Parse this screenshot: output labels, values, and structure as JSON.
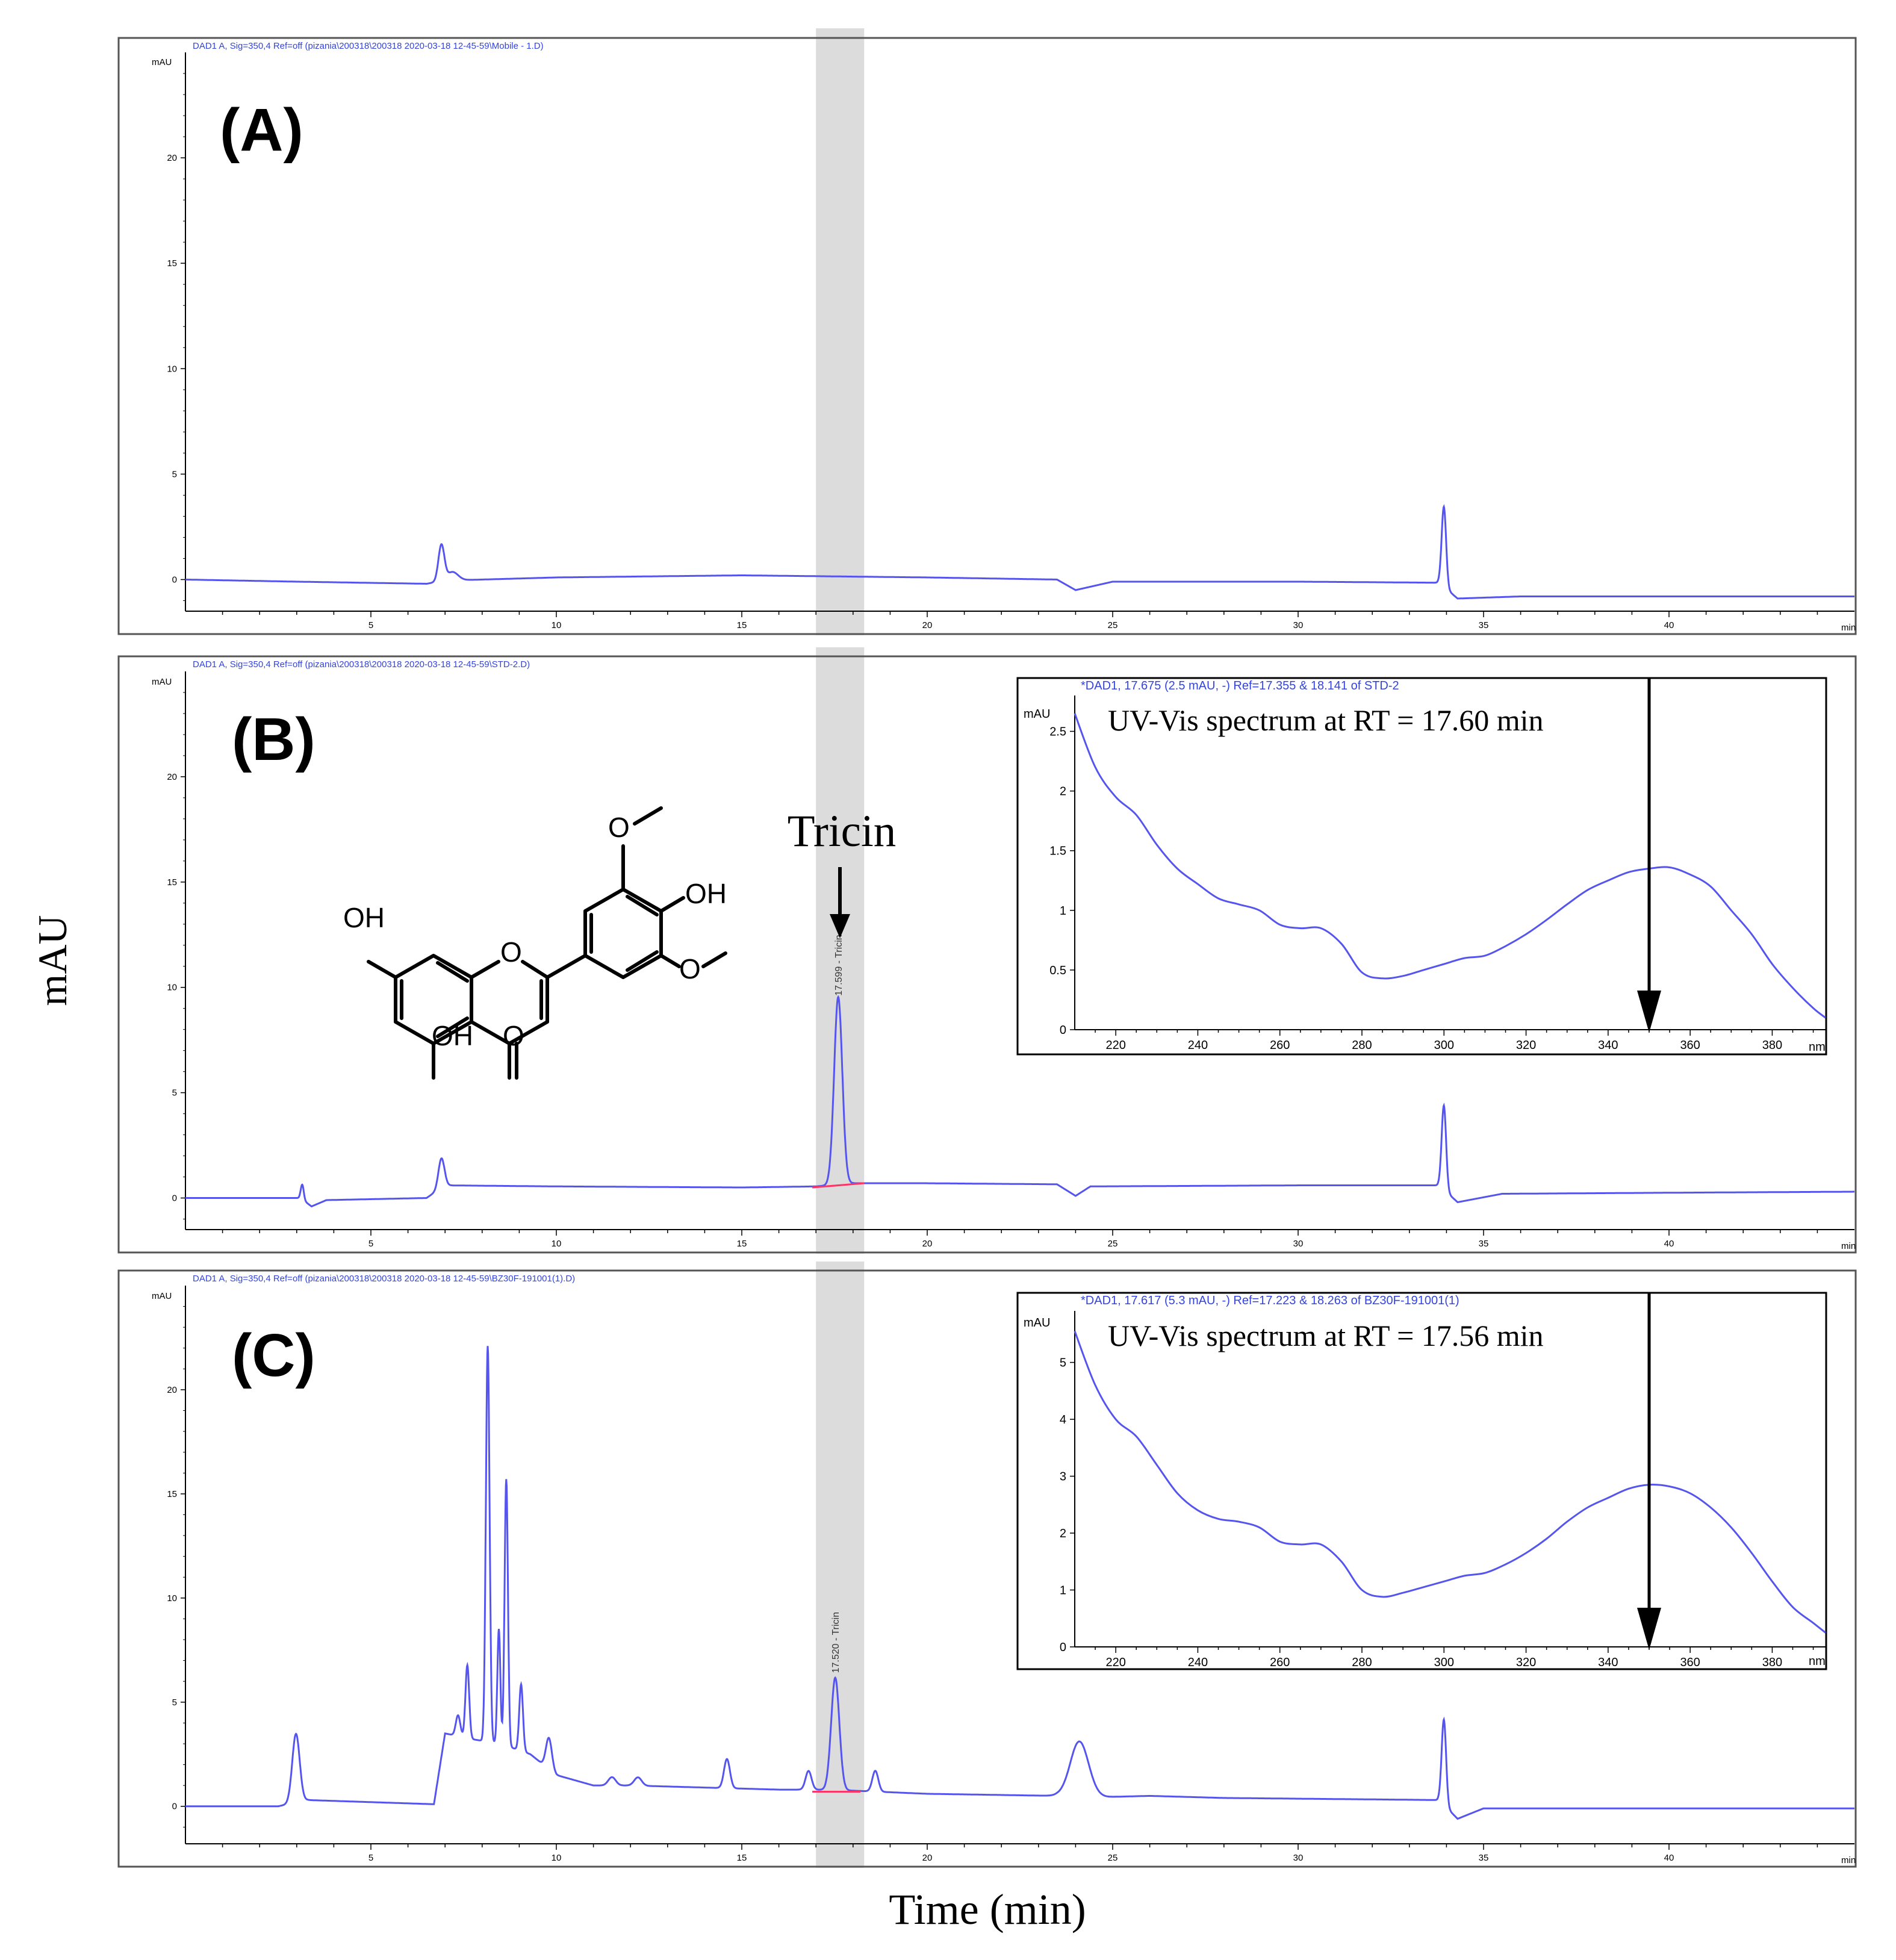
{
  "figure": {
    "ylabel": "mAU",
    "xlabel": "Time (min)",
    "highlight_band": [
      17.0,
      18.3
    ],
    "colors": {
      "trace": "#5555ee",
      "header": "#3344dd",
      "band": "#dcdcdc",
      "baseline": "#ff3366",
      "axis": "#000000",
      "frame": "#555555"
    }
  },
  "chart_data": [
    {
      "type": "line",
      "id": "A",
      "panel_label": "(A)",
      "header": "DAD1 A, Sig=350,4 Ref=off (pizania\\200318\\200318 2020-03-18 12-45-59\\Mobile - 1.D)",
      "unit_label": "mAU",
      "end_label": "min",
      "xlim": [
        0,
        45
      ],
      "ylim": [
        -1.5,
        25
      ],
      "xticks": [
        5,
        10,
        15,
        20,
        25,
        30,
        35,
        40
      ],
      "yticks": [
        0,
        5,
        10,
        15,
        20
      ],
      "baseline": [
        [
          0,
          0
        ],
        [
          3,
          -0.1
        ],
        [
          6.5,
          -0.2
        ],
        [
          7,
          -0.05
        ],
        [
          10,
          0.1
        ],
        [
          15,
          0.2
        ],
        [
          20,
          0.1
        ],
        [
          23.5,
          0
        ],
        [
          24,
          -0.5
        ],
        [
          25,
          -0.1
        ],
        [
          30,
          -0.1
        ],
        [
          33.8,
          -0.15
        ],
        [
          34.3,
          -0.9
        ],
        [
          36,
          -0.8
        ],
        [
          40,
          -0.8
        ],
        [
          45,
          -0.8
        ]
      ],
      "peaks": [
        {
          "rt": 6.9,
          "height": 1.7,
          "width": 0.08
        },
        {
          "rt": 7.2,
          "height": 0.4,
          "width": 0.15
        },
        {
          "rt": 33.93,
          "height": 3.8,
          "width": 0.06
        }
      ]
    },
    {
      "type": "line",
      "id": "B",
      "panel_label": "(B)",
      "header": "DAD1 A, Sig=350,4 Ref=off (pizania\\200318\\200318 2020-03-18 12-45-59\\STD-2.D)",
      "unit_label": "mAU",
      "end_label": "min",
      "xlim": [
        0,
        45
      ],
      "ylim": [
        -1.5,
        25
      ],
      "xticks": [
        5,
        10,
        15,
        20,
        25,
        30,
        35,
        40
      ],
      "yticks": [
        0,
        5,
        10,
        15,
        20
      ],
      "baseline": [
        [
          0,
          0
        ],
        [
          3.1,
          0
        ],
        [
          3.4,
          -0.4
        ],
        [
          3.8,
          -0.1
        ],
        [
          6.5,
          0
        ],
        [
          7,
          0.6
        ],
        [
          10,
          0.55
        ],
        [
          15,
          0.5
        ],
        [
          17,
          0.55
        ],
        [
          18,
          0.7
        ],
        [
          20,
          0.7
        ],
        [
          23.5,
          0.65
        ],
        [
          24,
          0.1
        ],
        [
          24.4,
          0.55
        ],
        [
          30,
          0.6
        ],
        [
          33.8,
          0.6
        ],
        [
          34.3,
          -0.2
        ],
        [
          35.5,
          0.2
        ],
        [
          40,
          0.25
        ],
        [
          45,
          0.3
        ]
      ],
      "peaks": [
        {
          "rt": 3.15,
          "height": 0.7,
          "width": 0.04
        },
        {
          "rt": 6.9,
          "height": 1.4,
          "width": 0.08
        },
        {
          "rt": 17.6,
          "height": 8.9,
          "width": 0.11
        },
        {
          "rt": 33.93,
          "height": 4.0,
          "width": 0.06
        }
      ],
      "peak_annotation": {
        "rt": 17.599,
        "y": 9.6,
        "text": "17.599 - Tricin"
      },
      "integration_baseline": [
        [
          16.9,
          0.5
        ],
        [
          18.3,
          0.7
        ]
      ],
      "compound_label": "Tricin",
      "structure_labels": [
        "OH",
        "O",
        "OH",
        "O",
        "OH",
        "O",
        "O"
      ],
      "inset": {
        "type": "line",
        "header": "*DAD1, 17.675 (2.5 mAU, -) Ref=17.355 & 18.141 of STD-2",
        "title": "UV-Vis spectrum at RT = 17.60 min",
        "unit_label": "mAU",
        "end_label": "nm",
        "xlim": [
          210,
          393
        ],
        "ylim": [
          0,
          2.75
        ],
        "xticks": [
          220,
          240,
          260,
          280,
          300,
          320,
          340,
          360,
          380
        ],
        "yticks": [
          0,
          0.5,
          1,
          1.5,
          2,
          2.5
        ],
        "ytick_labels": [
          "0",
          "0.5",
          "1",
          "1.5",
          "2",
          "2.5"
        ],
        "arrow_x": 350,
        "points": [
          [
            210,
            2.65
          ],
          [
            215,
            2.2
          ],
          [
            220,
            1.95
          ],
          [
            225,
            1.8
          ],
          [
            230,
            1.55
          ],
          [
            235,
            1.35
          ],
          [
            240,
            1.22
          ],
          [
            245,
            1.1
          ],
          [
            250,
            1.05
          ],
          [
            255,
            1.0
          ],
          [
            260,
            0.88
          ],
          [
            265,
            0.85
          ],
          [
            270,
            0.85
          ],
          [
            275,
            0.72
          ],
          [
            280,
            0.48
          ],
          [
            285,
            0.43
          ],
          [
            290,
            0.45
          ],
          [
            295,
            0.5
          ],
          [
            300,
            0.55
          ],
          [
            305,
            0.6
          ],
          [
            310,
            0.62
          ],
          [
            315,
            0.7
          ],
          [
            320,
            0.8
          ],
          [
            325,
            0.92
          ],
          [
            330,
            1.05
          ],
          [
            335,
            1.17
          ],
          [
            340,
            1.25
          ],
          [
            345,
            1.32
          ],
          [
            350,
            1.35
          ],
          [
            355,
            1.36
          ],
          [
            360,
            1.3
          ],
          [
            365,
            1.2
          ],
          [
            370,
            1.0
          ],
          [
            375,
            0.8
          ],
          [
            380,
            0.55
          ],
          [
            385,
            0.35
          ],
          [
            390,
            0.18
          ],
          [
            393,
            0.1
          ]
        ]
      }
    },
    {
      "type": "line",
      "id": "C",
      "panel_label": "(C)",
      "header": "DAD1 A, Sig=350,4 Ref=off (pizania\\200318\\200318 2020-03-18 12-45-59\\BZ30F-191001(1).D)",
      "unit_label": "mAU",
      "end_label": "min",
      "xlim": [
        0,
        45
      ],
      "ylim": [
        -1.8,
        25
      ],
      "xticks": [
        5,
        10,
        15,
        20,
        25,
        30,
        35,
        40
      ],
      "yticks": [
        0,
        5,
        10,
        15,
        20
      ],
      "baseline": [
        [
          0,
          0
        ],
        [
          2.5,
          0
        ],
        [
          3.3,
          0.3
        ],
        [
          6.7,
          0.1
        ],
        [
          7,
          3.5
        ],
        [
          7.8,
          3.2
        ],
        [
          8.5,
          3
        ],
        [
          9.3,
          2.5
        ],
        [
          10,
          1.5
        ],
        [
          11,
          1.0
        ],
        [
          12,
          1.0
        ],
        [
          14,
          0.9
        ],
        [
          16,
          0.8
        ],
        [
          17,
          0.8
        ],
        [
          18,
          0.75
        ],
        [
          20,
          0.6
        ],
        [
          23.5,
          0.5
        ],
        [
          23.8,
          0.4
        ],
        [
          26,
          0.5
        ],
        [
          28,
          0.4
        ],
        [
          33.8,
          0.3
        ],
        [
          34.3,
          -0.6
        ],
        [
          35,
          -0.1
        ],
        [
          40,
          -0.1
        ],
        [
          45,
          -0.1
        ]
      ],
      "peaks": [
        {
          "rt": 2.98,
          "height": 3.3,
          "width": 0.1
        },
        {
          "rt": 7.35,
          "height": 1.0,
          "width": 0.06
        },
        {
          "rt": 7.6,
          "height": 3.5,
          "width": 0.05
        },
        {
          "rt": 8.15,
          "height": 19.0,
          "width": 0.05
        },
        {
          "rt": 8.45,
          "height": 5.5,
          "width": 0.04
        },
        {
          "rt": 8.65,
          "height": 12.8,
          "width": 0.045
        },
        {
          "rt": 9.05,
          "height": 3.2,
          "width": 0.05
        },
        {
          "rt": 9.8,
          "height": 1.5,
          "width": 0.08
        },
        {
          "rt": 11.5,
          "height": 0.4,
          "width": 0.1
        },
        {
          "rt": 12.2,
          "height": 0.4,
          "width": 0.1
        },
        {
          "rt": 14.6,
          "height": 1.4,
          "width": 0.08
        },
        {
          "rt": 16.8,
          "height": 0.9,
          "width": 0.08
        },
        {
          "rt": 17.52,
          "height": 5.4,
          "width": 0.11
        },
        {
          "rt": 18.6,
          "height": 1.0,
          "width": 0.08
        },
        {
          "rt": 24.1,
          "height": 2.7,
          "width": 0.25
        },
        {
          "rt": 33.93,
          "height": 4.1,
          "width": 0.06
        }
      ],
      "peak_annotation": {
        "rt": 17.52,
        "y": 6.4,
        "text": "17.520 - Tricin"
      },
      "integration_baseline": [
        [
          16.9,
          0.7
        ],
        [
          18.2,
          0.7
        ]
      ],
      "inset": {
        "type": "line",
        "header": "*DAD1, 17.617 (5.3 mAU, -) Ref=17.223 & 18.263 of BZ30F-191001(1)",
        "title": "UV-Vis spectrum at RT = 17.56 min",
        "unit_label": "mAU",
        "end_label": "nm",
        "xlim": [
          210,
          393
        ],
        "ylim": [
          0,
          5.8
        ],
        "xticks": [
          220,
          240,
          260,
          280,
          300,
          320,
          340,
          360,
          380
        ],
        "yticks": [
          0,
          1,
          2,
          3,
          4,
          5
        ],
        "ytick_labels": [
          "0",
          "1",
          "2",
          "3",
          "4",
          "5"
        ],
        "arrow_x": 350,
        "points": [
          [
            210,
            5.55
          ],
          [
            215,
            4.6
          ],
          [
            220,
            4.0
          ],
          [
            225,
            3.7
          ],
          [
            230,
            3.2
          ],
          [
            235,
            2.7
          ],
          [
            240,
            2.4
          ],
          [
            245,
            2.25
          ],
          [
            250,
            2.2
          ],
          [
            255,
            2.1
          ],
          [
            260,
            1.85
          ],
          [
            265,
            1.8
          ],
          [
            270,
            1.8
          ],
          [
            275,
            1.5
          ],
          [
            280,
            1.0
          ],
          [
            285,
            0.88
          ],
          [
            290,
            0.95
          ],
          [
            295,
            1.05
          ],
          [
            300,
            1.15
          ],
          [
            305,
            1.25
          ],
          [
            310,
            1.3
          ],
          [
            315,
            1.45
          ],
          [
            320,
            1.65
          ],
          [
            325,
            1.9
          ],
          [
            330,
            2.2
          ],
          [
            335,
            2.45
          ],
          [
            340,
            2.62
          ],
          [
            345,
            2.78
          ],
          [
            350,
            2.85
          ],
          [
            355,
            2.82
          ],
          [
            360,
            2.7
          ],
          [
            365,
            2.45
          ],
          [
            370,
            2.1
          ],
          [
            375,
            1.65
          ],
          [
            380,
            1.15
          ],
          [
            385,
            0.7
          ],
          [
            390,
            0.42
          ],
          [
            393,
            0.25
          ]
        ]
      }
    }
  ]
}
